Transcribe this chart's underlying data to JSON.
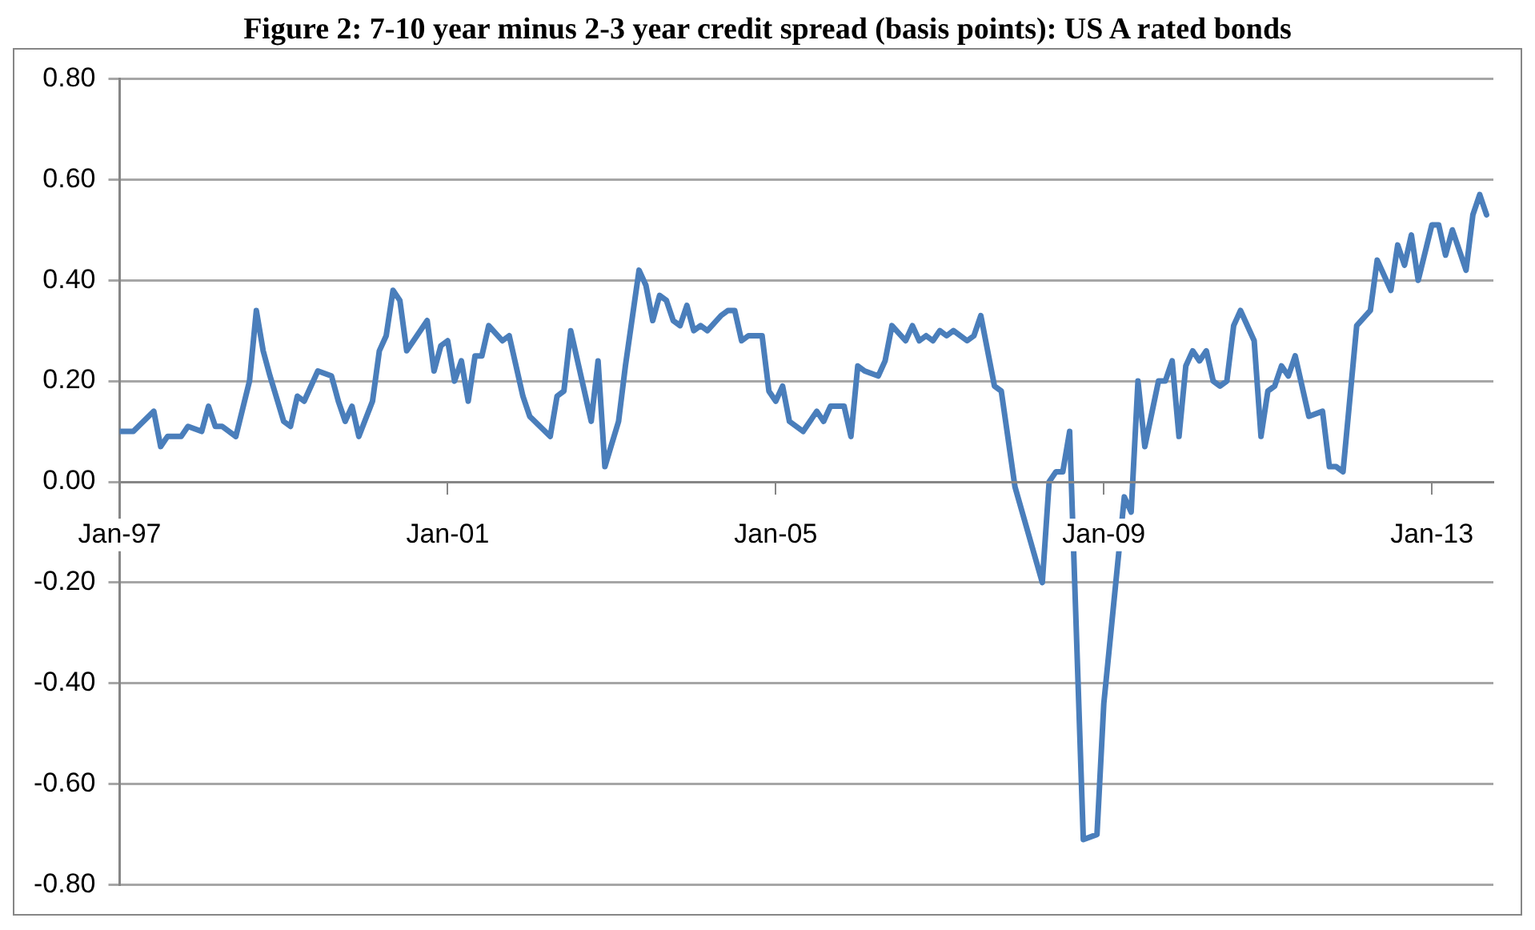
{
  "chart_data": {
    "type": "line",
    "title": "Figure 2: 7-10 year minus 2-3 year credit spread (basis points): US A rated bonds",
    "x": [
      "1997-01",
      "1997-03",
      "1997-06",
      "1997-07",
      "1997-08",
      "1997-10",
      "1997-11",
      "1998-01",
      "1998-02",
      "1998-03",
      "1998-04",
      "1998-06",
      "1998-08",
      "1998-09",
      "1998-10",
      "1998-11",
      "1999-01",
      "1999-02",
      "1999-03",
      "1999-04",
      "1999-06",
      "1999-08",
      "1999-09",
      "1999-10",
      "1999-11",
      "1999-12",
      "2000-02",
      "2000-03",
      "2000-04",
      "2000-05",
      "2000-06",
      "2000-07",
      "2000-08",
      "2000-10",
      "2000-11",
      "2000-12",
      "2001-01",
      "2001-02",
      "2001-03",
      "2001-04",
      "2001-05",
      "2001-06",
      "2001-07",
      "2001-09",
      "2001-10",
      "2001-12",
      "2002-01",
      "2002-04",
      "2002-05",
      "2002-06",
      "2002-07",
      "2002-10",
      "2002-11",
      "2002-12",
      "2003-02",
      "2003-03",
      "2003-05",
      "2003-06",
      "2003-07",
      "2003-08",
      "2003-09",
      "2003-10",
      "2003-11",
      "2003-12",
      "2004-01",
      "2004-02",
      "2004-03",
      "2004-05",
      "2004-06",
      "2004-07",
      "2004-08",
      "2004-09",
      "2004-11",
      "2004-12",
      "2005-01",
      "2005-02",
      "2005-03",
      "2005-04",
      "2005-05",
      "2005-07",
      "2005-08",
      "2005-09",
      "2005-11",
      "2005-12",
      "2006-01",
      "2006-02",
      "2006-04",
      "2006-05",
      "2006-06",
      "2006-08",
      "2006-09",
      "2006-10",
      "2006-11",
      "2006-12",
      "2007-01",
      "2007-02",
      "2007-03",
      "2007-05",
      "2007-06",
      "2007-07",
      "2007-09",
      "2007-10",
      "2007-12",
      "2008-04",
      "2008-05",
      "2008-06",
      "2008-07",
      "2008-08",
      "2008-10",
      "2008-12",
      "2009-01",
      "2009-04",
      "2009-05",
      "2009-06",
      "2009-07",
      "2009-09",
      "2009-10",
      "2009-11",
      "2009-12",
      "2010-01",
      "2010-02",
      "2010-03",
      "2010-04",
      "2010-05",
      "2010-06",
      "2010-07",
      "2010-08",
      "2010-09",
      "2010-11",
      "2010-12",
      "2011-01",
      "2011-02",
      "2011-03",
      "2011-04",
      "2011-05",
      "2011-07",
      "2011-09",
      "2011-10",
      "2011-11",
      "2011-12",
      "2012-02",
      "2012-04",
      "2012-05",
      "2012-07",
      "2012-08",
      "2012-09",
      "2012-10",
      "2012-11",
      "2013-01",
      "2013-02",
      "2013-03",
      "2013-04",
      "2013-06",
      "2013-07",
      "2013-08",
      "2013-09"
    ],
    "series": [
      {
        "color": "#4a7ebb",
        "values": [
          0.1,
          0.1,
          0.14,
          0.07,
          0.09,
          0.09,
          0.11,
          0.1,
          0.15,
          0.11,
          0.11,
          0.09,
          0.2,
          0.34,
          0.26,
          0.21,
          0.12,
          0.11,
          0.17,
          0.16,
          0.22,
          0.21,
          0.16,
          0.12,
          0.15,
          0.09,
          0.16,
          0.26,
          0.29,
          0.38,
          0.36,
          0.26,
          0.28,
          0.32,
          0.22,
          0.27,
          0.28,
          0.2,
          0.24,
          0.16,
          0.25,
          0.25,
          0.31,
          0.28,
          0.29,
          0.17,
          0.13,
          0.09,
          0.17,
          0.18,
          0.3,
          0.12,
          0.24,
          0.03,
          0.12,
          0.23,
          0.42,
          0.39,
          0.32,
          0.37,
          0.36,
          0.32,
          0.31,
          0.35,
          0.3,
          0.31,
          0.3,
          0.33,
          0.34,
          0.34,
          0.28,
          0.29,
          0.29,
          0.18,
          0.16,
          0.19,
          0.12,
          0.11,
          0.1,
          0.14,
          0.12,
          0.15,
          0.15,
          0.09,
          0.23,
          0.22,
          0.21,
          0.24,
          0.31,
          0.28,
          0.31,
          0.28,
          0.29,
          0.28,
          0.3,
          0.29,
          0.3,
          0.28,
          0.29,
          0.33,
          0.19,
          0.18,
          -0.01,
          -0.2,
          0.0,
          0.02,
          0.02,
          0.1,
          -0.71,
          -0.7,
          -0.44,
          -0.03,
          -0.06,
          0.2,
          0.07,
          0.2,
          0.2,
          0.24,
          0.09,
          0.23,
          0.26,
          0.24,
          0.26,
          0.2,
          0.19,
          0.2,
          0.31,
          0.34,
          0.28,
          0.09,
          0.18,
          0.19,
          0.23,
          0.21,
          0.25,
          0.13,
          0.14,
          0.03,
          0.03,
          0.02,
          0.31,
          0.34,
          0.44,
          0.38,
          0.47,
          0.43,
          0.49,
          0.4,
          0.51,
          0.51,
          0.45,
          0.5,
          0.42,
          0.53,
          0.57,
          0.53
        ]
      }
    ],
    "xlim": [
      "1997-01",
      "2013-10"
    ],
    "xticks": [
      {
        "value": "1997-01",
        "label": "Jan-97"
      },
      {
        "value": "2001-01",
        "label": "Jan-01"
      },
      {
        "value": "2005-01",
        "label": "Jan-05"
      },
      {
        "value": "2009-01",
        "label": "Jan-09"
      },
      {
        "value": "2013-01",
        "label": "Jan-13"
      }
    ],
    "ylim": [
      -0.8,
      0.8
    ],
    "yticks": [
      {
        "value": -0.8,
        "label": "-0.80"
      },
      {
        "value": -0.6,
        "label": "-0.60"
      },
      {
        "value": -0.4,
        "label": "-0.40"
      },
      {
        "value": -0.2,
        "label": "-0.20"
      },
      {
        "value": 0,
        "label": "0.00"
      },
      {
        "value": 0.2,
        "label": "0.20"
      },
      {
        "value": 0.4,
        "label": "0.40"
      },
      {
        "value": 0.6,
        "label": "0.60"
      },
      {
        "value": 0.8,
        "label": "0.80"
      }
    ],
    "grid": "y",
    "legend": false,
    "marker": "none",
    "line_style": "solid"
  }
}
